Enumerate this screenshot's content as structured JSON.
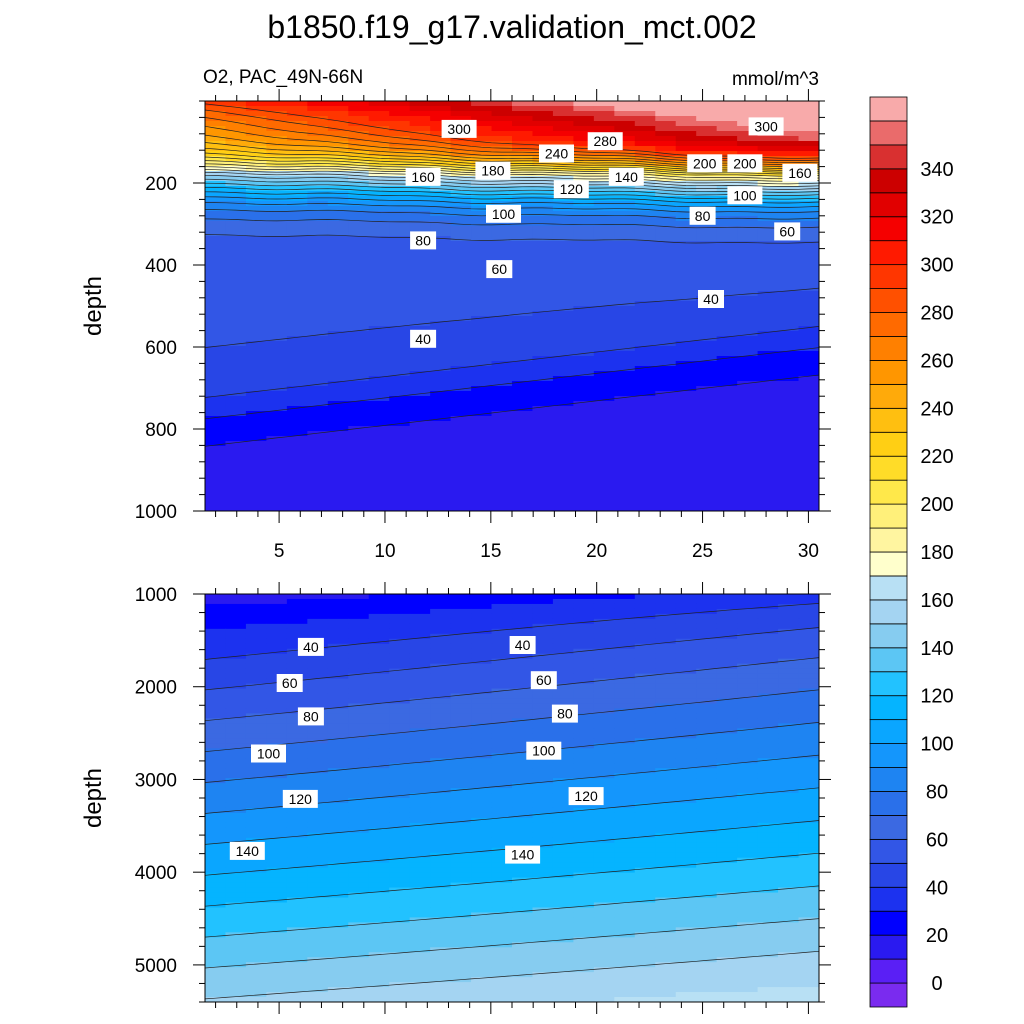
{
  "figure": {
    "title": "b1850.f19_g17.validation_mct.002",
    "subtitle_left": "O2, PAC_49N-66N",
    "subtitle_right": "mmol/m^3"
  },
  "chart_data": [
    {
      "type": "contour",
      "panel": "upper",
      "ylabel": "depth",
      "xlabel": "",
      "xlim": [
        1.5,
        30.5
      ],
      "ylim": [
        1000,
        0
      ],
      "x_ticks": [
        "5",
        "10",
        "15",
        "20",
        "25",
        "30"
      ],
      "y_ticks": [
        "200",
        "400",
        "600",
        "800",
        "1000"
      ],
      "contour_interval": 10,
      "contour_labels": [
        {
          "text": "300",
          "x": 13.5,
          "y": 68
        },
        {
          "text": "240",
          "x": 18.1,
          "y": 128
        },
        {
          "text": "280",
          "x": 20.4,
          "y": 98
        },
        {
          "text": "300",
          "x": 28.0,
          "y": 62
        },
        {
          "text": "160",
          "x": 11.8,
          "y": 185
        },
        {
          "text": "180",
          "x": 15.1,
          "y": 170
        },
        {
          "text": "200",
          "x": 25.1,
          "y": 152
        },
        {
          "text": "200",
          "x": 27.0,
          "y": 152
        },
        {
          "text": "160",
          "x": 29.6,
          "y": 175
        },
        {
          "text": "120",
          "x": 18.8,
          "y": 215
        },
        {
          "text": "140",
          "x": 21.4,
          "y": 185
        },
        {
          "text": "100",
          "x": 15.6,
          "y": 275
        },
        {
          "text": "100",
          "x": 27.0,
          "y": 230
        },
        {
          "text": "80",
          "x": 11.8,
          "y": 340
        },
        {
          "text": "80",
          "x": 25.0,
          "y": 280
        },
        {
          "text": "60",
          "x": 29.0,
          "y": 318
        },
        {
          "text": "60",
          "x": 15.4,
          "y": 410
        },
        {
          "text": "40",
          "x": 25.4,
          "y": 483
        },
        {
          "text": "40",
          "x": 11.8,
          "y": 580
        }
      ]
    },
    {
      "type": "contour",
      "panel": "lower",
      "ylabel": "depth",
      "xlabel": "",
      "xlim": [
        1.5,
        30.5
      ],
      "ylim": [
        5400,
        1000
      ],
      "y_ticks": [
        "1000",
        "2000",
        "3000",
        "4000",
        "5000"
      ],
      "contour_interval": 10,
      "contour_labels": [
        {
          "text": "40",
          "x": 6.5,
          "y": 1570
        },
        {
          "text": "40",
          "x": 16.5,
          "y": 1550
        },
        {
          "text": "60",
          "x": 5.5,
          "y": 1960
        },
        {
          "text": "60",
          "x": 17.5,
          "y": 1930
        },
        {
          "text": "80",
          "x": 6.5,
          "y": 2320
        },
        {
          "text": "80",
          "x": 18.5,
          "y": 2290
        },
        {
          "text": "100",
          "x": 4.5,
          "y": 2720
        },
        {
          "text": "100",
          "x": 17.5,
          "y": 2690
        },
        {
          "text": "120",
          "x": 6.0,
          "y": 3210
        },
        {
          "text": "120",
          "x": 19.5,
          "y": 3180
        },
        {
          "text": "140",
          "x": 3.5,
          "y": 3770
        },
        {
          "text": "140",
          "x": 16.5,
          "y": 3810
        }
      ]
    }
  ],
  "colorbar": {
    "tick_labels": [
      "0",
      "20",
      "40",
      "60",
      "80",
      "100",
      "120",
      "140",
      "160",
      "180",
      "200",
      "220",
      "240",
      "260",
      "280",
      "300",
      "320",
      "340"
    ],
    "levels": [
      -10,
      0,
      10,
      20,
      30,
      40,
      50,
      60,
      70,
      80,
      90,
      100,
      110,
      120,
      130,
      140,
      150,
      160,
      170,
      180,
      190,
      200,
      210,
      220,
      230,
      240,
      250,
      260,
      270,
      280,
      290,
      300,
      310,
      320,
      330,
      340,
      350,
      360
    ],
    "colors": [
      "#7a2bef",
      "#5a1ff5",
      "#2a1af0",
      "#0000ff",
      "#1c32ef",
      "#2846e6",
      "#3256e6",
      "#3b69e2",
      "#2a70ea",
      "#1e84f2",
      "#1496fc",
      "#0aa6ff",
      "#05b4ff",
      "#22c2ff",
      "#5cc6f4",
      "#86ccf0",
      "#a4d4f2",
      "#b8e0f4",
      "#ffffcc",
      "#fff5a0",
      "#fff07a",
      "#ffe84a",
      "#ffdc28",
      "#ffcf14",
      "#ffbf10",
      "#ffaa0a",
      "#ff9600",
      "#ff8000",
      "#ff6a00",
      "#ff5000",
      "#ff3600",
      "#ff1a00",
      "#f50000",
      "#e10000",
      "#cc0000",
      "#d93030",
      "#ea6b6b",
      "#f8aaaa"
    ]
  }
}
